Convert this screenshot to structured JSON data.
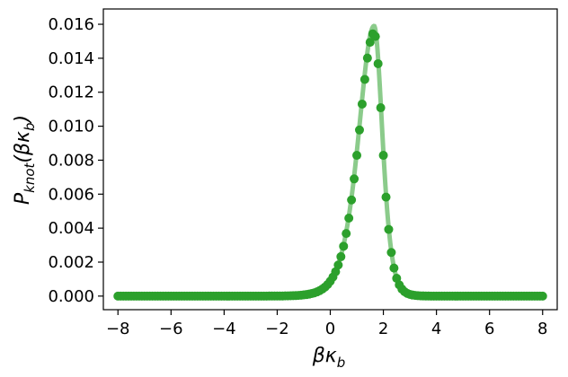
{
  "chart_data": {
    "type": "scatter",
    "title": "",
    "xlabel": {
      "main": "βκ",
      "sub": "b"
    },
    "ylabel": {
      "main": "P",
      "sub": "knot",
      "arg_open": "(βκ",
      "arg_sub": "b",
      "arg_close": ")"
    },
    "xlim": [
      -8.55,
      8.55
    ],
    "ylim": [
      -0.0008,
      0.0169
    ],
    "xticks": [
      -8,
      -6,
      -4,
      -2,
      0,
      2,
      4,
      6,
      8
    ],
    "xtick_labels": [
      "−8",
      "−6",
      "−4",
      "−2",
      "0",
      "2",
      "4",
      "6",
      "8"
    ],
    "yticks": [
      0.0,
      0.002,
      0.004,
      0.006,
      0.008,
      0.01,
      0.012,
      0.014,
      0.016
    ],
    "ytick_labels": [
      "0.000",
      "0.002",
      "0.004",
      "0.006",
      "0.008",
      "0.010",
      "0.012",
      "0.014",
      "0.016"
    ],
    "grid": false,
    "legend": "none",
    "series": [
      {
        "kind": "points",
        "color": "#2ca02c",
        "distribution": {
          "x_range": [
            -8,
            8
          ],
          "n_points": 161,
          "peak_x": 1.65,
          "peak_y": 0.0155,
          "left_scale": 0.78,
          "right_scale": 0.42
        }
      },
      {
        "kind": "smooth-line",
        "color": "#2ca02c",
        "opacity": 0.55,
        "peak_y": 0.0159
      }
    ]
  }
}
